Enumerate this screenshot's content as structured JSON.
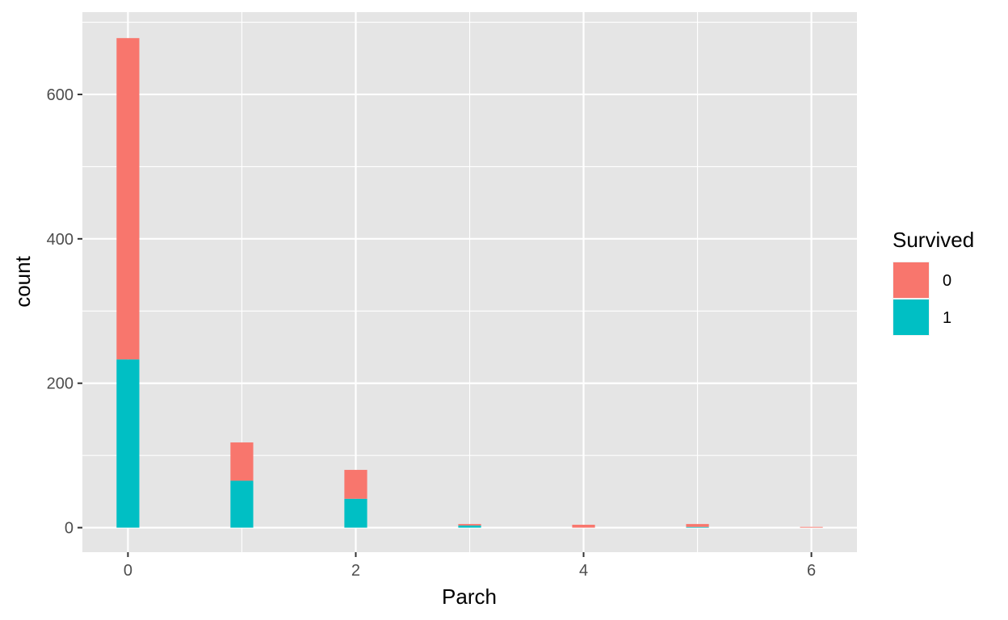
{
  "chart_data": {
    "type": "bar",
    "stacked": true,
    "x": [
      0,
      1,
      2,
      3,
      4,
      5,
      6
    ],
    "series": [
      {
        "name": "0",
        "color": "#F8766D",
        "values": [
          445,
          53,
          40,
          2,
          4,
          4,
          1
        ]
      },
      {
        "name": "1",
        "color": "#00BFC4",
        "values": [
          233,
          65,
          40,
          3,
          0,
          1,
          0
        ]
      }
    ],
    "xlabel": "Parch",
    "ylabel": "count",
    "xlim": [
      -0.4,
      6.4
    ],
    "ylim": [
      -34,
      714
    ],
    "x_ticks": [
      0,
      2,
      4,
      6
    ],
    "y_ticks": [
      0,
      200,
      400,
      600
    ],
    "legend": {
      "title": "Survived",
      "position": "right"
    },
    "grid": true,
    "panel_background": "#E5E5E5",
    "grid_color": "#FFFFFF"
  }
}
